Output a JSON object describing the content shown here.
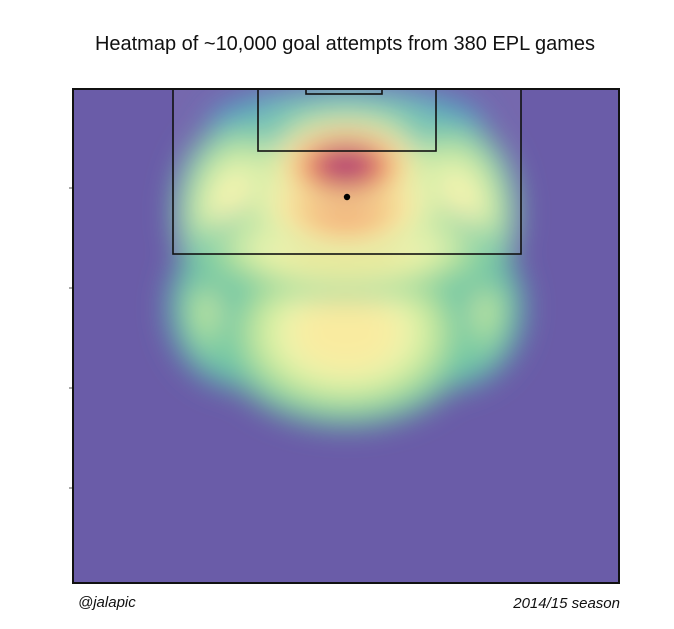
{
  "chart_data": {
    "type": "heatmap",
    "title": "Heatmap of ~10,000 goal attempts from 380 EPL games",
    "xlabel": "",
    "ylabel": "",
    "background_color": "#6a5ca8",
    "colormap": [
      "#6a5ca8",
      "#3f8fc4",
      "#6cc5a4",
      "#c5e99b",
      "#f7f8b2",
      "#fdd885",
      "#f99a58",
      "#e3524b",
      "#a8306a"
    ],
    "grid": false,
    "legend": "none",
    "region": "attacking half, goal at top",
    "density_hotspots": [
      {
        "area": "central, just in front of six-yard box",
        "intensity": 1.0
      },
      {
        "area": "penalty spot",
        "intensity": 0.82
      },
      {
        "area": "central edge of penalty area",
        "intensity": 0.6
      },
      {
        "area": "left side of penalty area",
        "intensity": 0.52
      },
      {
        "area": "right side of penalty area",
        "intensity": 0.52
      },
      {
        "area": "20-25 yards out, central",
        "intensity": 0.55
      },
      {
        "area": "20-25 yards out, left",
        "intensity": 0.45
      },
      {
        "area": "20-25 yards out, right",
        "intensity": 0.45
      },
      {
        "area": "near goal line, six-yard box",
        "intensity": 0.3
      }
    ]
  },
  "footer": {
    "credit": "@jalapic",
    "season": "2014/15 season"
  }
}
